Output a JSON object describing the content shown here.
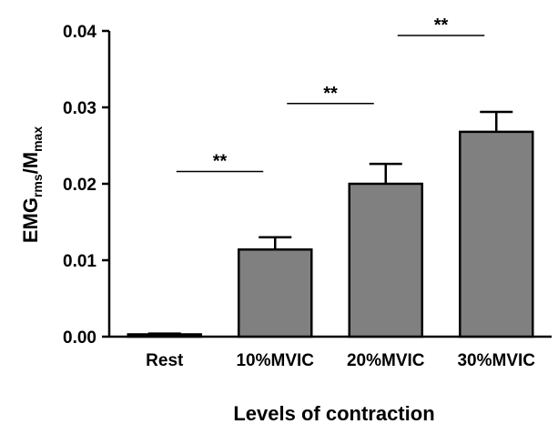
{
  "chart_data": {
    "type": "bar",
    "categories": [
      "Rest",
      "10%MVIC",
      "20%MVIC",
      "30%MVIC"
    ],
    "values": [
      0.0003,
      0.0114,
      0.02,
      0.0268
    ],
    "error_upper": [
      0.0004,
      0.013,
      0.0226,
      0.0294
    ],
    "ylim": [
      0,
      0.04
    ],
    "yticks": [
      "0.00",
      "0.01",
      "0.02",
      "0.03",
      "0.04"
    ],
    "ytick_values": [
      0,
      0.01,
      0.02,
      0.03,
      0.04
    ],
    "xlabel": "Levels of contraction",
    "ylabel": {
      "main": "EMG",
      "sub1": "rms",
      "mid": "/M",
      "sub2": "max"
    },
    "significance": [
      {
        "from": 0,
        "to": 1,
        "label": "**",
        "y": 0.0216
      },
      {
        "from": 1,
        "to": 2,
        "label": "**",
        "y": 0.0305
      },
      {
        "from": 2,
        "to": 3,
        "label": "**",
        "y": 0.0394
      }
    ],
    "bar_color": "#808080",
    "edge_color": "#000000",
    "grid": false
  }
}
